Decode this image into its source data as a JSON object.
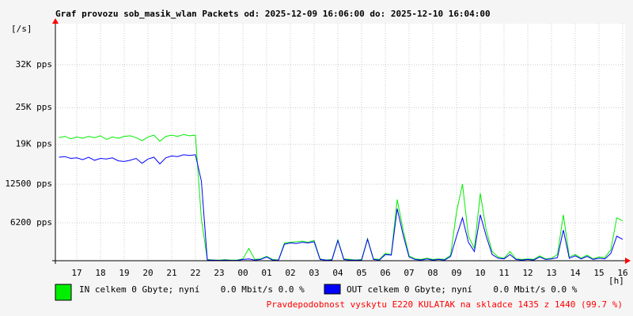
{
  "chart_data": {
    "type": "line",
    "title": "Graf provozu sob_masik_wlan Packets od: 2025-12-09 16:06:00 do: 2025-12-10 16:04:00",
    "y_label": "[/s]",
    "x_label": "[h]",
    "footer": "Pravdepodobnost vyskytu E220 KULATAK na skladce 1435 z 1440 (99.7 %)",
    "xlim": [
      16.1,
      40.1
    ],
    "xticks": [
      17,
      18,
      19,
      20,
      21,
      22,
      23,
      {
        "value": 24,
        "label": "00"
      },
      {
        "value": 25,
        "label": "01"
      },
      {
        "value": 26,
        "label": "02"
      },
      {
        "value": 27,
        "label": "03"
      },
      {
        "value": 28,
        "label": "04"
      },
      {
        "value": 29,
        "label": "05"
      },
      {
        "value": 30,
        "label": "06"
      },
      {
        "value": 31,
        "label": "07"
      },
      {
        "value": 32,
        "label": "08"
      },
      {
        "value": 33,
        "label": "09"
      },
      {
        "value": 34,
        "label": "10"
      },
      {
        "value": 35,
        "label": "11"
      },
      {
        "value": 36,
        "label": "12"
      },
      {
        "value": 37,
        "label": "13"
      },
      {
        "value": 38,
        "label": "14"
      },
      {
        "value": 39,
        "label": "15"
      },
      {
        "value": 40,
        "label": "16"
      }
    ],
    "ylim": [
      0,
      38700
    ],
    "yticks": [
      {
        "value": 6200,
        "label": "6200 pps"
      },
      {
        "value": 12500,
        "label": "12500 pps"
      },
      {
        "value": 19000,
        "label": "19K pps"
      },
      {
        "value": 25000,
        "label": "25K pps"
      },
      {
        "value": 32000,
        "label": "32K pps"
      }
    ],
    "grid": true,
    "x": [
      16.25,
      16.5,
      16.75,
      17,
      17.25,
      17.5,
      17.75,
      18,
      18.25,
      18.5,
      18.75,
      19,
      19.25,
      19.5,
      19.75,
      20,
      20.25,
      20.5,
      20.75,
      21,
      21.25,
      21.5,
      21.75,
      22,
      22.25,
      22.5,
      22.75,
      23,
      23.25,
      23.5,
      23.75,
      24,
      24.25,
      24.5,
      24.75,
      25,
      25.25,
      25.5,
      25.75,
      26,
      26.25,
      26.5,
      26.75,
      27,
      27.25,
      27.5,
      27.75,
      28,
      28.25,
      28.5,
      28.75,
      29,
      29.25,
      29.5,
      29.75,
      30,
      30.25,
      30.5,
      30.75,
      31,
      31.25,
      31.5,
      31.75,
      32,
      32.25,
      32.5,
      32.75,
      33,
      33.25,
      33.5,
      33.75,
      34,
      34.25,
      34.5,
      34.75,
      35,
      35.25,
      35.5,
      35.75,
      36,
      36.25,
      36.5,
      36.75,
      37,
      37.25,
      37.5,
      37.75,
      38,
      38.25,
      38.5,
      38.75,
      39,
      39.25,
      39.5,
      39.75,
      40
    ],
    "series": [
      {
        "name": "IN celkem 0 Gbyte; nyní    0.0 Mbit/s 0.0 %",
        "color": "#00ee00",
        "values": [
          20100,
          20300,
          19900,
          20200,
          20000,
          20300,
          20100,
          20400,
          19800,
          20200,
          20000,
          20300,
          20400,
          20100,
          19600,
          20200,
          20500,
          19500,
          20300,
          20500,
          20300,
          20600,
          20400,
          20500,
          6800,
          200,
          100,
          100,
          150,
          100,
          100,
          300,
          2000,
          200,
          300,
          700,
          200,
          100,
          2900,
          3000,
          3100,
          3200,
          3000,
          3300,
          300,
          100,
          200,
          3400,
          300,
          200,
          100,
          200,
          3600,
          300,
          200,
          1200,
          1000,
          10000,
          5000,
          800,
          300,
          200,
          400,
          200,
          300,
          200,
          900,
          8000,
          12500,
          4000,
          2000,
          11000,
          5000,
          1500,
          600,
          400,
          1500,
          300,
          200,
          300,
          200,
          800,
          300,
          400,
          1000,
          7500,
          600,
          1000,
          400,
          900,
          300,
          600,
          500,
          1800,
          7000,
          6500
        ]
      },
      {
        "name": "OUT celkem 0 Gbyte; nyní    0.0 Mbit/s 0.0 %",
        "color": "#0000ff",
        "values": [
          16900,
          17000,
          16700,
          16800,
          16500,
          16900,
          16400,
          16700,
          16600,
          16800,
          16300,
          16200,
          16400,
          16700,
          15900,
          16600,
          16900,
          15800,
          16800,
          17100,
          17000,
          17300,
          17200,
          17300,
          13000,
          100,
          100,
          50,
          100,
          50,
          50,
          200,
          300,
          100,
          200,
          600,
          100,
          100,
          2700,
          2900,
          2800,
          3000,
          2900,
          3100,
          200,
          100,
          100,
          3300,
          200,
          100,
          100,
          100,
          3500,
          200,
          100,
          1000,
          900,
          8500,
          4200,
          600,
          200,
          100,
          300,
          100,
          200,
          100,
          700,
          4000,
          7000,
          3000,
          1500,
          7500,
          4000,
          1000,
          400,
          300,
          1000,
          200,
          100,
          200,
          100,
          600,
          200,
          300,
          500,
          5000,
          400,
          800,
          300,
          700,
          200,
          400,
          300,
          1200,
          4000,
          3500
        ]
      }
    ]
  }
}
